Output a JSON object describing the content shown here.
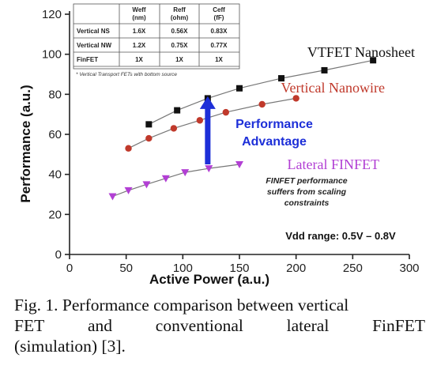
{
  "chart_data": {
    "type": "line",
    "xlabel": "Active Power (a.u.)",
    "ylabel": "Performance (a.u.)",
    "xlim": [
      0,
      300
    ],
    "ylim": [
      0,
      120
    ],
    "xticks": [
      0,
      50,
      100,
      150,
      200,
      250,
      300
    ],
    "yticks": [
      0,
      20,
      40,
      60,
      80,
      100,
      120
    ],
    "grid": false,
    "series": [
      {
        "name": "VTFET Nanosheet",
        "color": "#111111",
        "marker": "square",
        "x": [
          70,
          95,
          122,
          150,
          187,
          225,
          268
        ],
        "y": [
          65,
          72,
          78,
          83,
          88,
          92,
          97
        ]
      },
      {
        "name": "Vertical Nanowire",
        "color": "#c0392b",
        "marker": "circle",
        "x": [
          52,
          70,
          92,
          115,
          138,
          170,
          200
        ],
        "y": [
          53,
          58,
          63,
          67,
          71,
          75,
          78
        ]
      },
      {
        "name": "Lateral FINFET",
        "color": "#b23fd4",
        "marker": "triangle-down",
        "x": [
          38,
          52,
          68,
          85,
          102,
          123,
          150
        ],
        "y": [
          29,
          32,
          35,
          38,
          41,
          43,
          45
        ]
      }
    ],
    "arrow": {
      "label_line1": "Performance",
      "label_line2": "Advantage",
      "color": "#1d2fd8",
      "x": 122,
      "y_from": 45,
      "y_to": 79
    },
    "annotations": {
      "finfet_note_line1": "FINFET performance",
      "finfet_note_line2": "suffers from scaling",
      "finfet_note_line3": "constraints",
      "vdd": "Vdd range:  0.5V – 0.8V"
    },
    "inset_table": {
      "headers": [
        "",
        "Weff\n(nm)",
        "Reff\n(ohm)",
        "Ceff\n(fF)"
      ],
      "header_top": [
        "Weff",
        "Reff",
        "Ceff"
      ],
      "header_bottom": [
        "(nm)",
        "(ohm)",
        "(fF)"
      ],
      "rows": [
        [
          "Vertical NS",
          "1.6X",
          "0.56X",
          "0.83X"
        ],
        [
          "Vertical NW",
          "1.2X",
          "0.75X",
          "0.77X"
        ],
        [
          "FinFET",
          "1X",
          "1X",
          "1X"
        ]
      ],
      "footnote": "* Vertical Transport FETs with bottom source"
    }
  },
  "caption": {
    "line1": "Fig. 1. Performance comparison between vertical",
    "line2_words": [
      "FET",
      "and",
      "conventional",
      "lateral",
      "FinFET"
    ],
    "line3": "(simulation) [3]."
  }
}
